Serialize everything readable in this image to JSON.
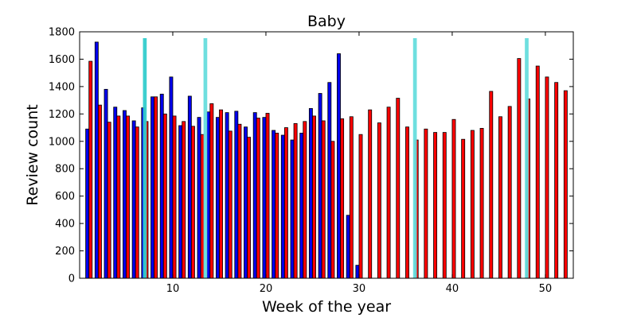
{
  "chart_data": {
    "type": "bar",
    "title": "Baby",
    "xlabel": "Week of the year",
    "ylabel": "Review count",
    "xlim": [
      0,
      53
    ],
    "ylim": [
      0,
      1800
    ],
    "xticks": [
      10,
      20,
      30,
      40,
      50
    ],
    "yticks": [
      0,
      200,
      400,
      600,
      800,
      1000,
      1200,
      1400,
      1600,
      1800
    ],
    "grid": false,
    "legend": "none",
    "x": [
      1,
      2,
      3,
      4,
      5,
      6,
      7,
      8,
      9,
      10,
      11,
      12,
      13,
      14,
      15,
      16,
      17,
      18,
      19,
      20,
      21,
      22,
      23,
      24,
      25,
      26,
      27,
      28,
      29,
      30,
      31,
      32,
      33,
      34,
      35,
      36,
      37,
      38,
      39,
      40,
      41,
      42,
      43,
      44,
      45,
      46,
      47,
      48,
      49,
      50,
      51,
      52
    ],
    "series": [
      {
        "color": "#0000ee",
        "values": [
          1090,
          1725,
          1380,
          1250,
          1225,
          1150,
          1245,
          1325,
          1345,
          1470,
          1115,
          1330,
          1175,
          1215,
          1175,
          1210,
          1220,
          1105,
          1210,
          1175,
          1080,
          1045,
          1010,
          1060,
          1240,
          1350,
          1430,
          1640,
          460,
          95,
          null,
          null,
          null,
          null,
          null,
          null,
          null,
          null,
          null,
          null,
          null,
          null,
          null,
          null,
          null,
          null,
          null,
          null,
          null,
          null,
          null,
          null
        ]
      },
      {
        "color": "#ff0000",
        "values": [
          1585,
          1265,
          1140,
          1185,
          1185,
          1105,
          1145,
          1325,
          1200,
          1185,
          1145,
          1110,
          1050,
          1275,
          1230,
          1075,
          1125,
          1030,
          1170,
          1205,
          1060,
          1100,
          1130,
          1145,
          1185,
          1150,
          1000,
          1165,
          1180,
          1050,
          1230,
          1135,
          1250,
          1315,
          1105,
          1010,
          1090,
          1065,
          1065,
          1160,
          1015,
          1080,
          1095,
          1365,
          1180,
          1255,
          1605,
          1310,
          1550,
          1470,
          1430,
          1370
        ]
      }
    ],
    "markers": [
      {
        "x": 7,
        "color": "#33cccc"
      },
      {
        "x": 13.5,
        "color": "#66dddd"
      },
      {
        "x": 36,
        "color": "#66dddd"
      },
      {
        "x": 48,
        "color": "#66dddd"
      }
    ]
  }
}
